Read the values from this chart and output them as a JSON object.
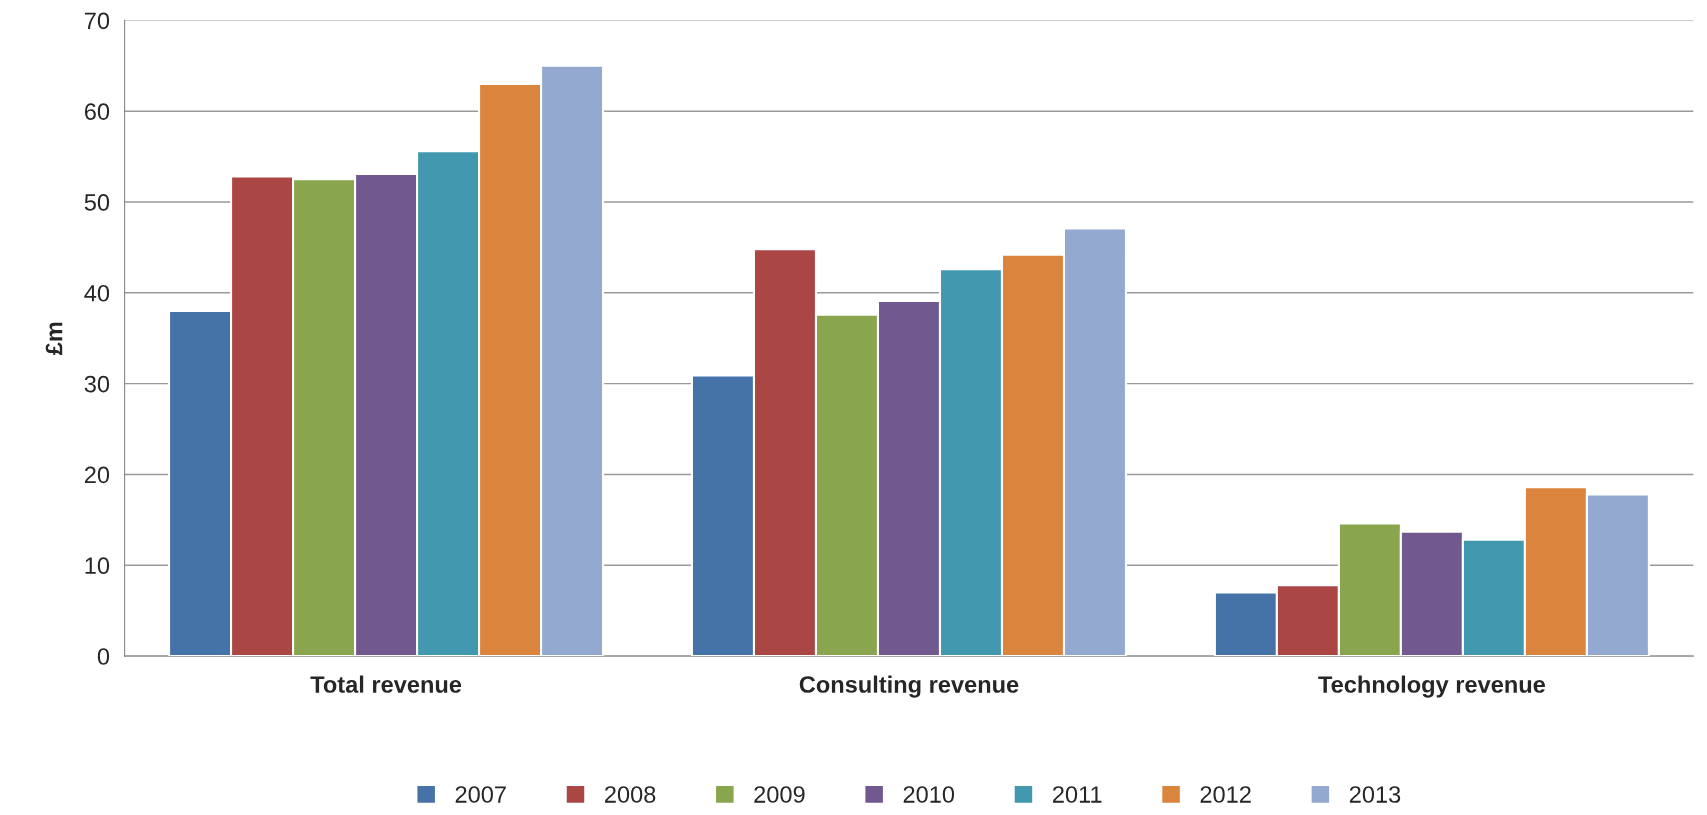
{
  "chart_data": {
    "type": "bar",
    "ylabel": "£m",
    "categories": [
      "Total revenue",
      "Consulting revenue",
      "Technology revenue"
    ],
    "series": [
      {
        "name": "2007",
        "color": "#4572a7",
        "values": [
          38,
          30.9,
          7.0
        ]
      },
      {
        "name": "2008",
        "color": "#aa4643",
        "values": [
          52.8,
          44.8,
          7.8
        ]
      },
      {
        "name": "2009",
        "color": "#89a54e",
        "values": [
          52.5,
          37.6,
          14.6
        ]
      },
      {
        "name": "2010",
        "color": "#71588f",
        "values": [
          53.1,
          39.1,
          13.7
        ]
      },
      {
        "name": "2011",
        "color": "#4198af",
        "values": [
          55.6,
          42.6,
          12.8
        ]
      },
      {
        "name": "2012",
        "color": "#db843d",
        "values": [
          63,
          44.2,
          18.6
        ]
      },
      {
        "name": "2013",
        "color": "#93a9cf",
        "values": [
          65,
          47.1,
          17.8
        ]
      }
    ],
    "ylim": [
      0,
      70
    ],
    "yticks": [
      0,
      10,
      20,
      30,
      40,
      50,
      60,
      70
    ],
    "grid": "y",
    "legend": "bottom"
  }
}
